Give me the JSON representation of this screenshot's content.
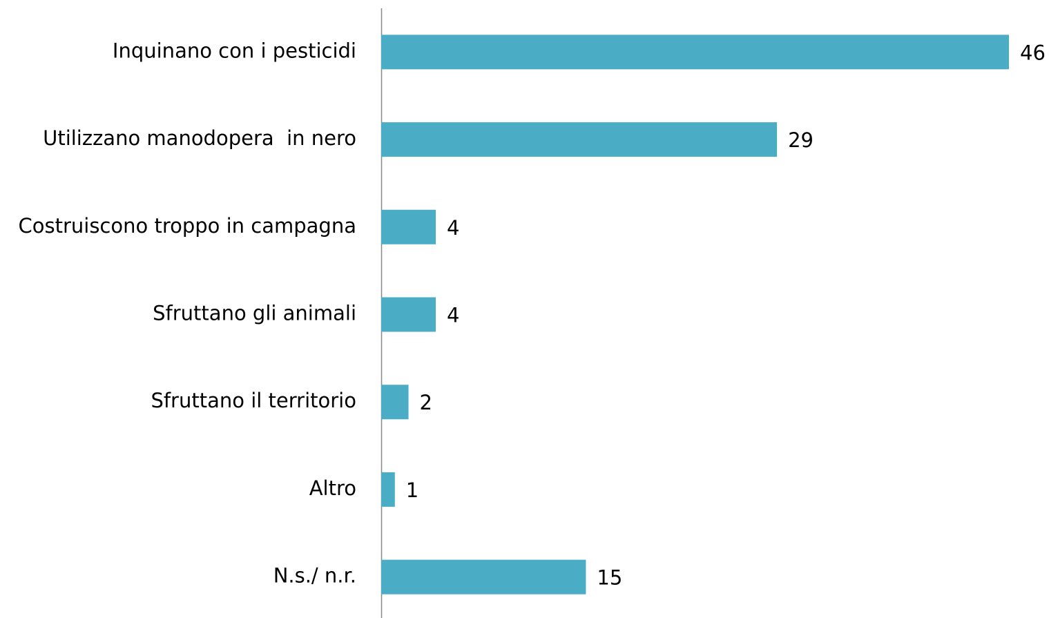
{
  "chart_data": {
    "type": "barh",
    "categories": [
      "Inquinano con i pesticidi",
      "Utilizzano manodopera  in nero",
      "Costruiscono troppo in campagna",
      "Sfruttano gli animali",
      "Sfruttano il territorio",
      "Altro",
      "N.s./ n.r."
    ],
    "values": [
      46,
      29,
      4,
      4,
      2,
      1,
      15
    ],
    "color": "#4bacc6",
    "xlim": [
      0,
      46
    ]
  }
}
